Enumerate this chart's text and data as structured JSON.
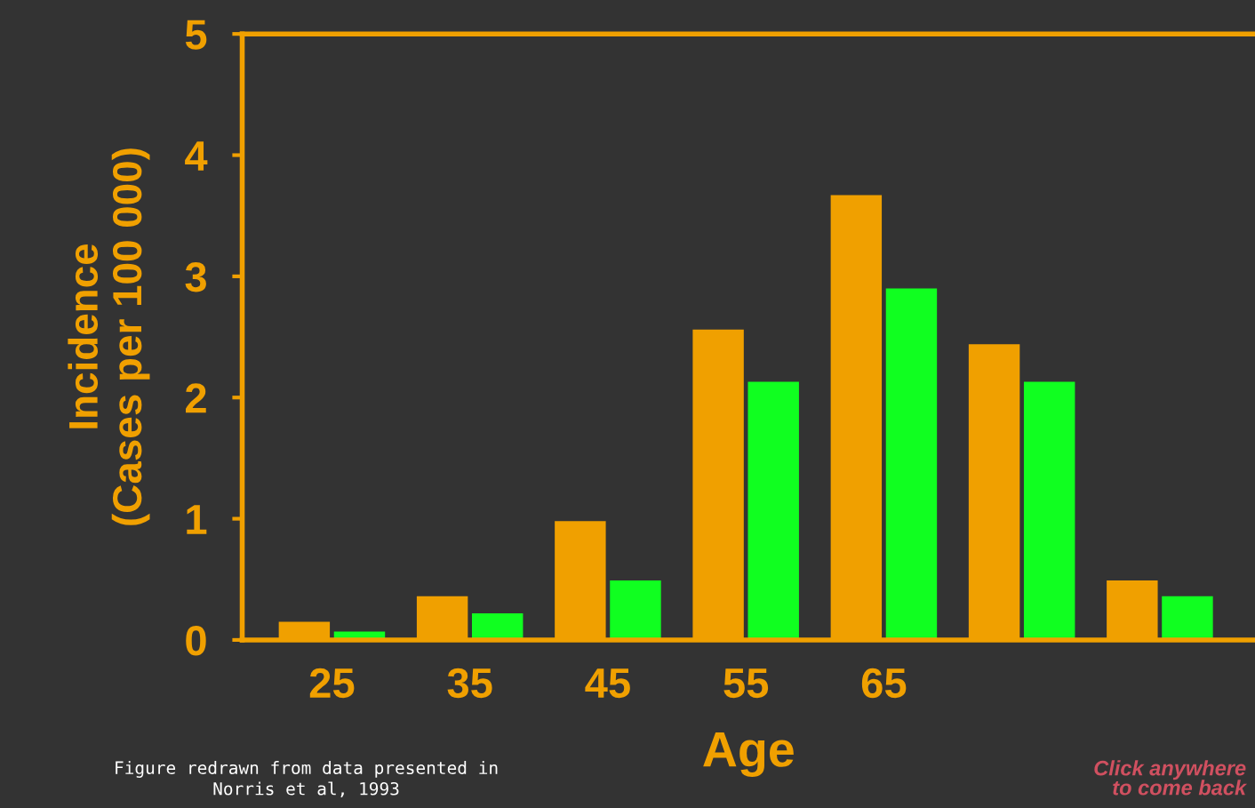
{
  "chart_data": {
    "type": "bar",
    "xlabel": "Age",
    "ylabel": "Incidence\n(Cases per 100 000)",
    "categories": [
      "25",
      "35",
      "45",
      "55",
      "65",
      null,
      null
    ],
    "series": [
      {
        "color": "#f0a000",
        "values": [
          0.15,
          0.36,
          0.98,
          2.56,
          3.67,
          2.44,
          0.49
        ]
      },
      {
        "color": "#10ff20",
        "values": [
          0.07,
          0.22,
          0.49,
          2.13,
          2.9,
          2.13,
          0.36
        ]
      }
    ],
    "ylim": [
      0,
      5
    ],
    "yticks": [
      0,
      1,
      2,
      3,
      4,
      5
    ],
    "grid": false,
    "legend": false,
    "annotations": [
      "Figure redrawn from data presented in\nNorris et al, 1993",
      "Click anywhere\nto come back"
    ]
  }
}
